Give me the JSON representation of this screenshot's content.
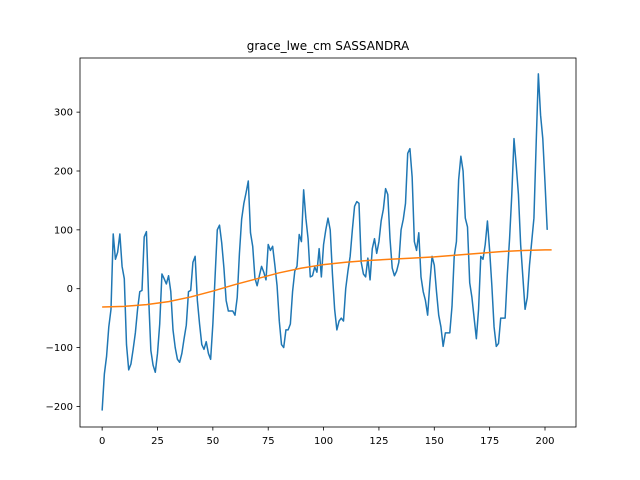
{
  "chart_data": {
    "type": "line",
    "title": "grace_lwe_cm SASSANDRA",
    "xlabel": "",
    "ylabel": "",
    "xlim": [
      -10,
      214
    ],
    "ylim": [
      -235,
      392
    ],
    "xticks": [
      0,
      25,
      50,
      75,
      100,
      125,
      150,
      175,
      200
    ],
    "yticks": [
      -200,
      -100,
      0,
      100,
      200,
      300
    ],
    "grid": false,
    "series": [
      {
        "color": "#1f77b4",
        "points": [
          [
            0,
            -207
          ],
          [
            1,
            -145
          ],
          [
            2,
            -115
          ],
          [
            3,
            -65
          ],
          [
            4,
            -35
          ],
          [
            5,
            93
          ],
          [
            6,
            50
          ],
          [
            7,
            62
          ],
          [
            8,
            93
          ],
          [
            9,
            38
          ],
          [
            10,
            17
          ],
          [
            11,
            -95
          ],
          [
            12,
            -138
          ],
          [
            13,
            -128
          ],
          [
            14,
            -103
          ],
          [
            15,
            -75
          ],
          [
            16,
            -35
          ],
          [
            17,
            -5
          ],
          [
            18,
            -3
          ],
          [
            19,
            88
          ],
          [
            20,
            97
          ],
          [
            21,
            -15
          ],
          [
            22,
            -105
          ],
          [
            23,
            -130
          ],
          [
            24,
            -142
          ],
          [
            25,
            -110
          ],
          [
            26,
            -60
          ],
          [
            27,
            25
          ],
          [
            28,
            17
          ],
          [
            29,
            8
          ],
          [
            30,
            22
          ],
          [
            31,
            -5
          ],
          [
            32,
            -70
          ],
          [
            33,
            -100
          ],
          [
            34,
            -120
          ],
          [
            35,
            -125
          ],
          [
            36,
            -110
          ],
          [
            37,
            -85
          ],
          [
            38,
            -62
          ],
          [
            39,
            -5
          ],
          [
            40,
            -3
          ],
          [
            41,
            45
          ],
          [
            42,
            55
          ],
          [
            43,
            -20
          ],
          [
            44,
            -60
          ],
          [
            45,
            -95
          ],
          [
            46,
            -103
          ],
          [
            47,
            -90
          ],
          [
            48,
            -110
          ],
          [
            49,
            -120
          ],
          [
            50,
            -60
          ],
          [
            51,
            20
          ],
          [
            52,
            100
          ],
          [
            53,
            108
          ],
          [
            54,
            78
          ],
          [
            55,
            35
          ],
          [
            56,
            -20
          ],
          [
            57,
            -38
          ],
          [
            58,
            -38
          ],
          [
            59,
            -38
          ],
          [
            60,
            -45
          ],
          [
            61,
            -15
          ],
          [
            62,
            60
          ],
          [
            63,
            118
          ],
          [
            64,
            145
          ],
          [
            65,
            163
          ],
          [
            66,
            183
          ],
          [
            67,
            95
          ],
          [
            68,
            72
          ],
          [
            69,
            18
          ],
          [
            70,
            5
          ],
          [
            71,
            22
          ],
          [
            72,
            38
          ],
          [
            73,
            28
          ],
          [
            74,
            15
          ],
          [
            75,
            75
          ],
          [
            76,
            65
          ],
          [
            77,
            72
          ],
          [
            78,
            40
          ],
          [
            79,
            5
          ],
          [
            80,
            -55
          ],
          [
            81,
            -95
          ],
          [
            82,
            -100
          ],
          [
            83,
            -70
          ],
          [
            84,
            -70
          ],
          [
            85,
            -60
          ],
          [
            86,
            -5
          ],
          [
            87,
            30
          ],
          [
            88,
            38
          ],
          [
            89,
            92
          ],
          [
            90,
            80
          ],
          [
            91,
            168
          ],
          [
            92,
            120
          ],
          [
            93,
            85
          ],
          [
            94,
            20
          ],
          [
            95,
            22
          ],
          [
            96,
            37
          ],
          [
            97,
            28
          ],
          [
            98,
            68
          ],
          [
            99,
            20
          ],
          [
            100,
            75
          ],
          [
            101,
            100
          ],
          [
            102,
            120
          ],
          [
            103,
            100
          ],
          [
            104,
            25
          ],
          [
            105,
            -35
          ],
          [
            106,
            -70
          ],
          [
            107,
            -55
          ],
          [
            108,
            -50
          ],
          [
            109,
            -55
          ],
          [
            110,
            0
          ],
          [
            111,
            30
          ],
          [
            112,
            55
          ],
          [
            113,
            100
          ],
          [
            114,
            140
          ],
          [
            115,
            148
          ],
          [
            116,
            145
          ],
          [
            117,
            45
          ],
          [
            118,
            25
          ],
          [
            119,
            20
          ],
          [
            120,
            52
          ],
          [
            121,
            15
          ],
          [
            122,
            68
          ],
          [
            123,
            85
          ],
          [
            124,
            60
          ],
          [
            125,
            80
          ],
          [
            126,
            115
          ],
          [
            127,
            135
          ],
          [
            128,
            170
          ],
          [
            129,
            160
          ],
          [
            130,
            85
          ],
          [
            131,
            35
          ],
          [
            132,
            22
          ],
          [
            133,
            30
          ],
          [
            134,
            45
          ],
          [
            135,
            100
          ],
          [
            136,
            118
          ],
          [
            137,
            145
          ],
          [
            138,
            230
          ],
          [
            139,
            238
          ],
          [
            140,
            190
          ],
          [
            141,
            80
          ],
          [
            142,
            65
          ],
          [
            143,
            95
          ],
          [
            144,
            20
          ],
          [
            145,
            -5
          ],
          [
            146,
            -20
          ],
          [
            147,
            -45
          ],
          [
            148,
            10
          ],
          [
            149,
            55
          ],
          [
            150,
            40
          ],
          [
            151,
            -5
          ],
          [
            152,
            -45
          ],
          [
            153,
            -65
          ],
          [
            154,
            -98
          ],
          [
            155,
            -75
          ],
          [
            156,
            -75
          ],
          [
            157,
            -75
          ],
          [
            158,
            -30
          ],
          [
            159,
            55
          ],
          [
            160,
            80
          ],
          [
            161,
            185
          ],
          [
            162,
            225
          ],
          [
            163,
            200
          ],
          [
            164,
            120
          ],
          [
            165,
            105
          ],
          [
            166,
            10
          ],
          [
            167,
            -15
          ],
          [
            168,
            -50
          ],
          [
            169,
            -85
          ],
          [
            170,
            -35
          ],
          [
            171,
            55
          ],
          [
            172,
            50
          ],
          [
            173,
            75
          ],
          [
            174,
            115
          ],
          [
            175,
            65
          ],
          [
            176,
            5
          ],
          [
            177,
            -65
          ],
          [
            178,
            -98
          ],
          [
            179,
            -93
          ],
          [
            180,
            -50
          ],
          [
            181,
            -50
          ],
          [
            182,
            -50
          ],
          [
            183,
            25
          ],
          [
            184,
            85
          ],
          [
            185,
            160
          ],
          [
            186,
            255
          ],
          [
            187,
            210
          ],
          [
            188,
            160
          ],
          [
            189,
            75
          ],
          [
            190,
            20
          ],
          [
            191,
            -35
          ],
          [
            192,
            -15
          ],
          [
            193,
            40
          ],
          [
            194,
            80
          ],
          [
            195,
            120
          ],
          [
            196,
            245
          ],
          [
            197,
            365
          ],
          [
            198,
            295
          ],
          [
            199,
            255
          ],
          [
            200,
            180
          ],
          [
            201,
            100
          ]
        ]
      },
      {
        "color": "#ff7f0e",
        "points": [
          [
            0,
            -31
          ],
          [
            10,
            -30
          ],
          [
            20,
            -27
          ],
          [
            30,
            -22
          ],
          [
            40,
            -14
          ],
          [
            50,
            -4
          ],
          [
            60,
            7
          ],
          [
            70,
            17
          ],
          [
            80,
            27
          ],
          [
            90,
            35
          ],
          [
            100,
            41
          ],
          [
            110,
            45
          ],
          [
            120,
            48
          ],
          [
            130,
            50
          ],
          [
            140,
            52
          ],
          [
            150,
            54
          ],
          [
            160,
            57
          ],
          [
            170,
            60
          ],
          [
            180,
            63
          ],
          [
            190,
            65
          ],
          [
            200,
            66
          ],
          [
            203,
            66
          ]
        ]
      }
    ]
  }
}
